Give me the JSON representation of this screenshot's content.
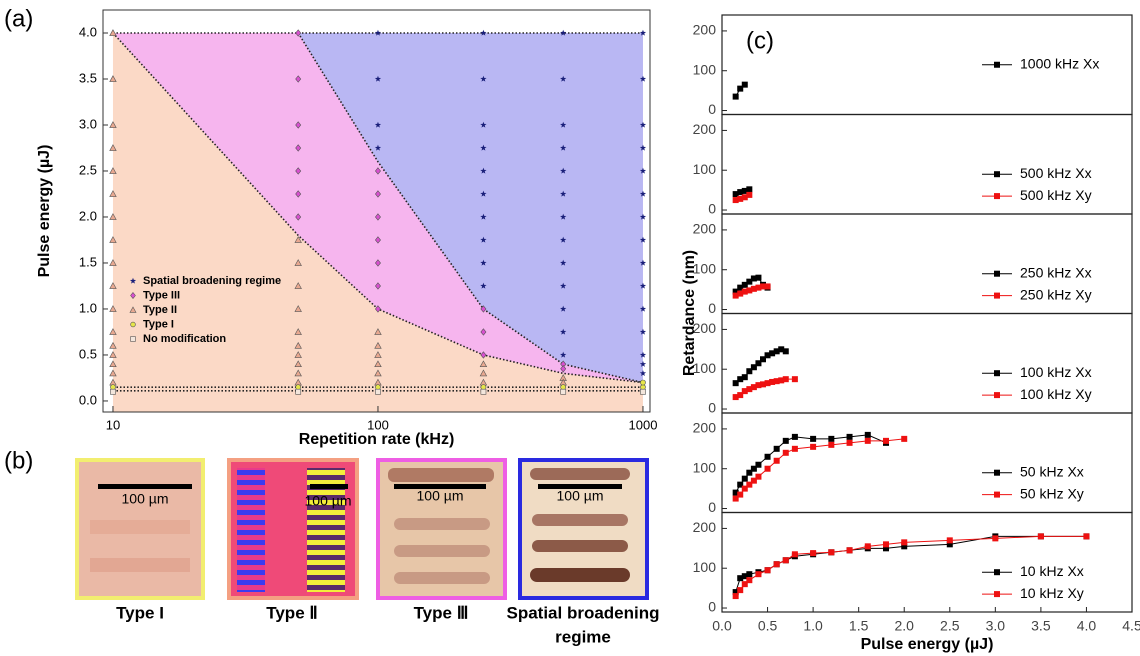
{
  "panel_labels": [
    "(a)",
    "(b)",
    "(c)"
  ],
  "micrographs": [
    {
      "label": [
        "Type I"
      ],
      "scale_bar": "100 µm"
    },
    {
      "label": [
        "Type Ⅱ"
      ],
      "scale_bar": "100 µm"
    },
    {
      "label": [
        "Type Ⅲ"
      ],
      "scale_bar": "100 µm"
    },
    {
      "label": [
        "Spatial broadening",
        "regime"
      ],
      "scale_bar": "100 µm"
    }
  ],
  "chart_data": [
    {
      "type": "regime-scatter",
      "xlabel": "Repetition rate (kHz)",
      "ylabel": "Pulse energy (µJ)",
      "xscale": "log",
      "xlim": [
        9.17,
        1063
      ],
      "ylim": [
        -0.12,
        4.25
      ],
      "xticks": [
        10,
        100,
        1000
      ],
      "yticks": [
        {
          "value": 0,
          "label": "0.0"
        },
        0.5,
        {
          "value": 1,
          "label": "1.0"
        },
        1.5,
        {
          "value": 2,
          "label": "2.0"
        },
        2.5,
        {
          "value": 3,
          "label": "3.0"
        },
        3.5,
        {
          "value": 4,
          "label": "4.0"
        }
      ],
      "legend": "center left",
      "region_colors": [
        "#fbd9c6",
        "#f6b5ee",
        "#b9b7f3"
      ],
      "boundaries": [
        {
          "x": [
            10,
            50,
            100,
            250,
            500,
            1000
          ],
          "y": [
            4.0,
            1.8,
            1.0,
            0.5,
            0.3,
            0.2
          ]
        },
        {
          "x": [
            50,
            100,
            250,
            500,
            1000
          ],
          "y": [
            4.0,
            2.6,
            1.0,
            0.4,
            0.2
          ]
        },
        {
          "x": [
            10,
            1000
          ],
          "y": [
            0.15,
            0.15
          ]
        },
        {
          "x": [
            10,
            1000
          ],
          "y": [
            0.11,
            0.11
          ]
        },
        {
          "x": [
            10,
            1000
          ],
          "y": [
            4.0,
            4.0
          ]
        }
      ],
      "series": [
        {
          "name": "Spatial broadening regime",
          "marker": "star",
          "color": "#1a1f7a",
          "x": [
            100,
            100,
            100,
            100,
            250,
            250,
            250,
            250,
            250,
            250,
            250,
            250,
            250,
            250,
            500,
            500,
            500,
            500,
            500,
            500,
            500,
            500,
            500,
            500,
            500,
            500,
            500,
            1000,
            1000,
            1000,
            1000,
            1000,
            1000,
            1000,
            1000,
            1000,
            1000,
            1000,
            1000,
            1000,
            1000,
            1000
          ],
          "y": [
            4.0,
            3.5,
            3.0,
            2.75,
            4.0,
            3.5,
            3.0,
            2.75,
            2.5,
            2.25,
            2.0,
            1.75,
            1.5,
            1.25,
            4.0,
            3.5,
            3.0,
            2.75,
            2.5,
            2.25,
            2.0,
            1.75,
            1.5,
            1.25,
            1.0,
            0.75,
            0.5,
            4.0,
            3.5,
            3.0,
            2.75,
            2.5,
            2.25,
            2.0,
            1.75,
            1.5,
            1.25,
            1.0,
            0.75,
            0.5,
            0.4,
            0.3
          ]
        },
        {
          "name": "Type III",
          "marker": "diamond",
          "color": "#d94fd0",
          "x": [
            50,
            50,
            50,
            50,
            50,
            50,
            50,
            100,
            100,
            100,
            100,
            100,
            100,
            100,
            250,
            250,
            250,
            500,
            500
          ],
          "y": [
            4.0,
            3.5,
            3.0,
            2.75,
            2.5,
            2.25,
            2.0,
            2.5,
            2.25,
            2.0,
            1.75,
            1.5,
            1.25,
            1.0,
            1.0,
            0.75,
            0.5,
            0.4,
            0.35
          ]
        },
        {
          "name": "Type II",
          "marker": "triangle",
          "color": "#e8a890",
          "x": [
            10,
            10,
            10,
            10,
            10,
            10,
            10,
            10,
            10,
            10,
            10,
            10,
            10,
            10,
            10,
            10,
            10,
            50,
            50,
            50,
            50,
            50,
            50,
            50,
            50,
            50,
            50,
            100,
            100,
            100,
            100,
            100,
            100,
            250,
            250,
            250,
            500,
            500
          ],
          "y": [
            4.0,
            3.5,
            3.0,
            2.75,
            2.5,
            2.25,
            2.0,
            1.75,
            1.5,
            1.25,
            1.0,
            0.75,
            0.6,
            0.5,
            0.4,
            0.3,
            0.2,
            1.75,
            1.5,
            1.25,
            1.0,
            0.75,
            0.6,
            0.5,
            0.4,
            0.3,
            0.2,
            0.75,
            0.6,
            0.5,
            0.4,
            0.3,
            0.2,
            0.4,
            0.3,
            0.2,
            0.25,
            0.2
          ]
        },
        {
          "name": "Type I",
          "marker": "circle",
          "color": "#e6e64a",
          "x": [
            10,
            50,
            100,
            250,
            500,
            1000,
            1000
          ],
          "y": [
            0.15,
            0.15,
            0.15,
            0.15,
            0.15,
            0.15,
            0.2
          ]
        },
        {
          "name": "No modification",
          "marker": "square",
          "color": "#f3e6dc",
          "x": [
            10,
            50,
            100,
            250,
            500,
            1000
          ],
          "y": [
            0.1,
            0.1,
            0.1,
            0.1,
            0.1,
            0.1
          ]
        }
      ]
    },
    {
      "type": "line",
      "xlim": [
        0,
        4.5
      ],
      "ylim": [
        -10,
        240
      ],
      "yticks": [
        0,
        100,
        200
      ],
      "series": [
        {
          "name": "1000 kHz Xx",
          "color": "#000000",
          "x": [
            0.15,
            0.2,
            0.25
          ],
          "y": [
            35,
            55,
            65
          ]
        }
      ]
    },
    {
      "type": "line",
      "xlim": [
        0,
        4.5
      ],
      "ylim": [
        -10,
        240
      ],
      "yticks": [
        0,
        100,
        200
      ],
      "series": [
        {
          "name": "500 kHz Xx",
          "color": "#000000",
          "x": [
            0.15,
            0.2,
            0.25,
            0.3
          ],
          "y": [
            40,
            45,
            48,
            52
          ]
        },
        {
          "name": "500 kHz Xy",
          "color": "#ee1111",
          "x": [
            0.15,
            0.2,
            0.25,
            0.3
          ],
          "y": [
            25,
            28,
            32,
            38
          ]
        }
      ]
    },
    {
      "type": "line",
      "xlim": [
        0,
        4.5
      ],
      "ylim": [
        -10,
        240
      ],
      "yticks": [
        0,
        100,
        200
      ],
      "series": [
        {
          "name": "250 kHz Xx",
          "color": "#000000",
          "x": [
            0.15,
            0.2,
            0.25,
            0.3,
            0.35,
            0.4,
            0.45,
            0.5
          ],
          "y": [
            45,
            55,
            62,
            70,
            78,
            80,
            62,
            55
          ]
        },
        {
          "name": "250 kHz Xy",
          "color": "#ee1111",
          "x": [
            0.15,
            0.2,
            0.25,
            0.3,
            0.35,
            0.4,
            0.45,
            0.5
          ],
          "y": [
            35,
            40,
            45,
            48,
            52,
            55,
            58,
            58
          ]
        }
      ]
    },
    {
      "type": "line",
      "xlim": [
        0,
        4.5
      ],
      "ylim": [
        -10,
        240
      ],
      "yticks": [
        0,
        100,
        200
      ],
      "series": [
        {
          "name": "100 kHz Xx",
          "color": "#000000",
          "x": [
            0.15,
            0.2,
            0.25,
            0.3,
            0.35,
            0.4,
            0.45,
            0.5,
            0.55,
            0.6,
            0.65,
            0.7
          ],
          "y": [
            65,
            75,
            80,
            95,
            105,
            115,
            125,
            135,
            140,
            145,
            150,
            145
          ]
        },
        {
          "name": "100 kHz Xy",
          "color": "#ee1111",
          "x": [
            0.15,
            0.2,
            0.25,
            0.3,
            0.35,
            0.4,
            0.45,
            0.5,
            0.55,
            0.6,
            0.65,
            0.7,
            0.8
          ],
          "y": [
            30,
            35,
            45,
            50,
            55,
            60,
            62,
            65,
            68,
            70,
            72,
            75,
            75
          ]
        }
      ]
    },
    {
      "type": "line",
      "xlim": [
        0,
        4.5
      ],
      "ylim": [
        -10,
        240
      ],
      "yticks": [
        0,
        100,
        200
      ],
      "series": [
        {
          "name": "50 kHz Xx",
          "color": "#000000",
          "x": [
            0.15,
            0.2,
            0.25,
            0.3,
            0.35,
            0.4,
            0.5,
            0.6,
            0.7,
            0.8,
            1.0,
            1.2,
            1.4,
            1.6,
            1.8
          ],
          "y": [
            40,
            60,
            75,
            90,
            100,
            110,
            130,
            150,
            170,
            180,
            175,
            175,
            180,
            185,
            165
          ]
        },
        {
          "name": "50 kHz Xy",
          "color": "#ee1111",
          "x": [
            0.15,
            0.2,
            0.25,
            0.3,
            0.35,
            0.4,
            0.5,
            0.6,
            0.7,
            0.8,
            1.0,
            1.2,
            1.4,
            1.6,
            1.8,
            2.0
          ],
          "y": [
            25,
            35,
            50,
            60,
            70,
            80,
            100,
            120,
            140,
            150,
            155,
            160,
            165,
            170,
            170,
            175
          ]
        }
      ]
    },
    {
      "type": "line",
      "xlim": [
        0,
        4.5
      ],
      "ylim": [
        -10,
        240
      ],
      "yticks": [
        0,
        100,
        200
      ],
      "xlabel": "Pulse energy (µJ)",
      "ylabel": "Retardance (nm)",
      "xticks": [
        {
          "value": 0,
          "label": "0.0"
        },
        0.5,
        {
          "value": 1,
          "label": "1.0"
        },
        1.5,
        {
          "value": 2,
          "label": "2.0"
        },
        2.5,
        {
          "value": 3,
          "label": "3.0"
        },
        3.5,
        {
          "value": 4,
          "label": "4.0"
        },
        4.5
      ],
      "series": [
        {
          "name": "10 kHz Xx",
          "color": "#000000",
          "x": [
            0.15,
            0.2,
            0.25,
            0.3,
            0.4,
            0.5,
            0.6,
            0.7,
            0.8,
            1.0,
            1.2,
            1.4,
            1.6,
            1.8,
            2.0,
            2.5,
            3.0,
            3.5,
            4.0
          ],
          "y": [
            40,
            75,
            80,
            85,
            90,
            95,
            110,
            120,
            130,
            135,
            140,
            145,
            150,
            150,
            155,
            160,
            180,
            180,
            180
          ]
        },
        {
          "name": "10 kHz Xy",
          "color": "#ee1111",
          "x": [
            0.15,
            0.2,
            0.25,
            0.3,
            0.4,
            0.5,
            0.6,
            0.7,
            0.8,
            1.0,
            1.2,
            1.4,
            1.6,
            1.8,
            2.0,
            2.5,
            3.0,
            3.5,
            4.0
          ],
          "y": [
            30,
            45,
            60,
            70,
            85,
            95,
            110,
            120,
            135,
            138,
            140,
            145,
            155,
            160,
            165,
            170,
            175,
            180,
            180
          ]
        }
      ]
    }
  ]
}
